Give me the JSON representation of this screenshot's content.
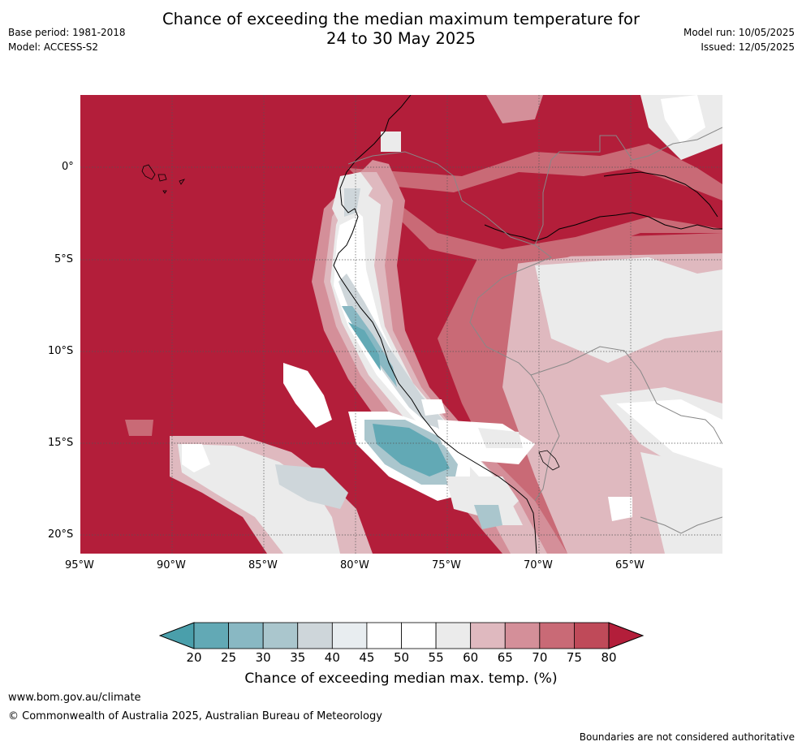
{
  "header": {
    "title_line1": "Chance of exceeding the median maximum temperature for",
    "title_line2": "24 to 30 May 2025",
    "base_period": "Base period: 1981-2018",
    "model": "Model: ACCESS-S2",
    "model_run": "Model run: 10/05/2025",
    "issued": "Issued: 12/05/2025"
  },
  "map": {
    "lat_labels": [
      "0°",
      "5°S",
      "10°S",
      "15°S",
      "20°S"
    ],
    "lon_labels": [
      "95°W",
      "90°W",
      "85°W",
      "80°W",
      "75°W",
      "70°W",
      "65°W"
    ],
    "palette": {
      "c20": "#62a9b5",
      "c25": "#89b8c3",
      "c30": "#aac6cd",
      "c35": "#ced6da",
      "c40": "#e8edf0",
      "c45": "#ffffff",
      "c50": "#ffffff",
      "c55": "#ebebeb",
      "c60": "#dfb9bf",
      "c65": "#d48f99",
      "c70": "#c96a76",
      "c75": "#bf4a59",
      "c80": "#b31e3a"
    }
  },
  "colorbar": {
    "ticks": [
      "20",
      "25",
      "30",
      "35",
      "40",
      "45",
      "50",
      "55",
      "60",
      "65",
      "70",
      "75",
      "80"
    ],
    "colors": [
      "#62a9b5",
      "#89b8c3",
      "#aac6cd",
      "#ced6da",
      "#e8edf0",
      "#ffffff",
      "#ffffff",
      "#ebebeb",
      "#dfb9bf",
      "#d48f99",
      "#c96a76",
      "#bf4a59"
    ],
    "under_color": "#4a9fab",
    "over_color": "#b31e3a",
    "title": "Chance of exceeding median max. temp. (%)"
  },
  "footer": {
    "url": "www.bom.gov.au/climate",
    "copyright": "© Commonwealth of Australia 2025, Australian Bureau of Meteorology",
    "disclaimer": "Boundaries are not considered authoritative"
  }
}
